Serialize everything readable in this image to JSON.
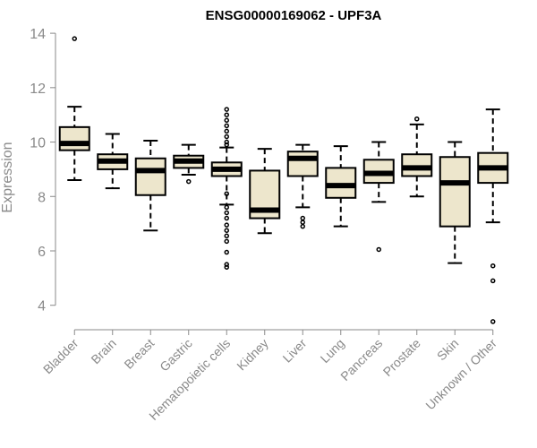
{
  "chart_data": {
    "type": "boxplot",
    "title": "ENSG00000169062 - UPF3A",
    "xlabel": "",
    "ylabel": "Expression",
    "ylim": [
      3.2,
      14.3
    ],
    "yticks": [
      4,
      6,
      8,
      10,
      12,
      14
    ],
    "categories": [
      "Bladder",
      "Brain",
      "Breast",
      "Gastric",
      "Hematopoietic cells",
      "Kidney",
      "Liver",
      "Lung",
      "Pancreas",
      "Prostate",
      "Skin",
      "Unknown / Other"
    ],
    "boxes": [
      {
        "category": "Bladder",
        "whisker_low": 8.6,
        "q1": 9.7,
        "median": 9.95,
        "q3": 10.55,
        "whisker_high": 11.3,
        "outliers": [
          13.8
        ]
      },
      {
        "category": "Brain",
        "whisker_low": 8.3,
        "q1": 9.0,
        "median": 9.3,
        "q3": 9.55,
        "whisker_high": 10.3,
        "outliers": []
      },
      {
        "category": "Breast",
        "whisker_low": 6.75,
        "q1": 8.05,
        "median": 8.95,
        "q3": 9.4,
        "whisker_high": 10.05,
        "outliers": []
      },
      {
        "category": "Gastric",
        "whisker_low": 8.8,
        "q1": 9.05,
        "median": 9.3,
        "q3": 9.5,
        "whisker_high": 9.9,
        "outliers": [
          8.55
        ]
      },
      {
        "category": "Hematopoietic cells",
        "whisker_low": 7.7,
        "q1": 8.75,
        "median": 9.0,
        "q3": 9.25,
        "whisker_high": 9.8,
        "outliers": [
          11.2,
          11.0,
          10.8,
          10.6,
          10.4,
          10.2,
          10.0,
          9.9,
          8.1,
          7.6,
          7.4,
          7.2,
          6.95,
          6.75,
          6.55,
          6.35,
          5.95,
          5.5,
          5.4
        ]
      },
      {
        "category": "Kidney",
        "whisker_low": 6.65,
        "q1": 7.2,
        "median": 7.5,
        "q3": 8.95,
        "whisker_high": 9.75,
        "outliers": []
      },
      {
        "category": "Liver",
        "whisker_low": 7.6,
        "q1": 8.75,
        "median": 9.4,
        "q3": 9.65,
        "whisker_high": 9.9,
        "outliers": [
          7.2,
          7.05,
          6.9
        ]
      },
      {
        "category": "Lung",
        "whisker_low": 6.9,
        "q1": 7.95,
        "median": 8.4,
        "q3": 9.05,
        "whisker_high": 9.85,
        "outliers": []
      },
      {
        "category": "Pancreas",
        "whisker_low": 7.8,
        "q1": 8.5,
        "median": 8.85,
        "q3": 9.35,
        "whisker_high": 10.0,
        "outliers": [
          6.05
        ]
      },
      {
        "category": "Prostate",
        "whisker_low": 8.0,
        "q1": 8.75,
        "median": 9.05,
        "q3": 9.55,
        "whisker_high": 10.65,
        "outliers": [
          10.85
        ]
      },
      {
        "category": "Skin",
        "whisker_low": 5.55,
        "q1": 6.9,
        "median": 8.5,
        "q3": 9.45,
        "whisker_high": 10.0,
        "outliers": []
      },
      {
        "category": "Unknown / Other",
        "whisker_low": 7.05,
        "q1": 8.5,
        "median": 9.05,
        "q3": 9.6,
        "whisker_high": 11.2,
        "outliers": [
          5.45,
          4.9,
          3.4
        ]
      }
    ],
    "colors": {
      "box_fill": "#ede6cc",
      "box_stroke": "#000000",
      "axis": "#8a8a8a",
      "text": "#8a8a8a",
      "title": "#000000"
    }
  }
}
